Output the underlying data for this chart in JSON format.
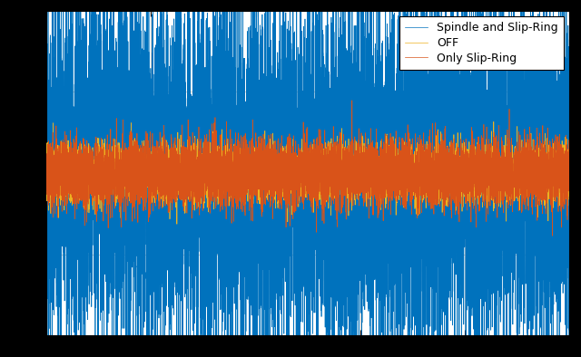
{
  "title": "",
  "legend_labels": [
    "Spindle and Slip-Ring",
    "Only Slip-Ring",
    "OFF"
  ],
  "colors": {
    "spindle": "#0072BD",
    "slip_ring": "#D95319",
    "off": "#EDB120"
  },
  "n_points": 10000,
  "spindle_amplitude": 0.38,
  "slip_ring_amplitude": 0.07,
  "off_amplitude": 0.06,
  "ylim": [
    -0.7,
    0.7
  ],
  "background": "#FFFFFF",
  "grid": true,
  "linewidth": 0.5,
  "n_xticks": 5,
  "figsize": [
    6.4,
    3.94
  ],
  "dpi": 100
}
